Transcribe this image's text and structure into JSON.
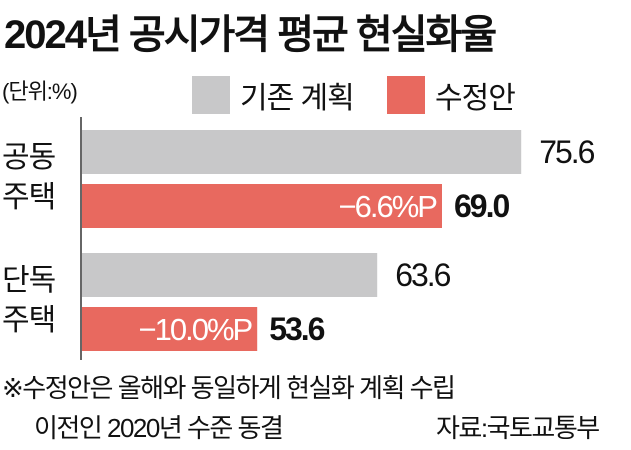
{
  "chart_data": {
    "type": "bar",
    "orientation": "horizontal",
    "title": "2024년 공시가격 평균 현실화율",
    "unit_label": "(단위:%)",
    "categories": [
      [
        "공동",
        "주택"
      ],
      [
        "단독",
        "주택"
      ]
    ],
    "series": [
      {
        "name": "기존 계획",
        "color": "#c8c8c9",
        "values": [
          75.6,
          63.6
        ],
        "labels": [
          "75.6",
          "63.6"
        ]
      },
      {
        "name": "수정안",
        "color": "#e8695f",
        "values": [
          69.0,
          53.6
        ],
        "labels": [
          "69.0",
          "53.6"
        ],
        "change_labels": [
          "−6.6%P",
          "−10.0%P"
        ]
      }
    ],
    "xlim": [
      39,
      80
    ],
    "grid": false,
    "legend": "top-right"
  },
  "footnote": {
    "line1": "※수정안은 올해와 동일하게 현실화 계획 수립",
    "line2": "이전인 2020년 수준 동결",
    "source": "자료:국토교통부"
  }
}
